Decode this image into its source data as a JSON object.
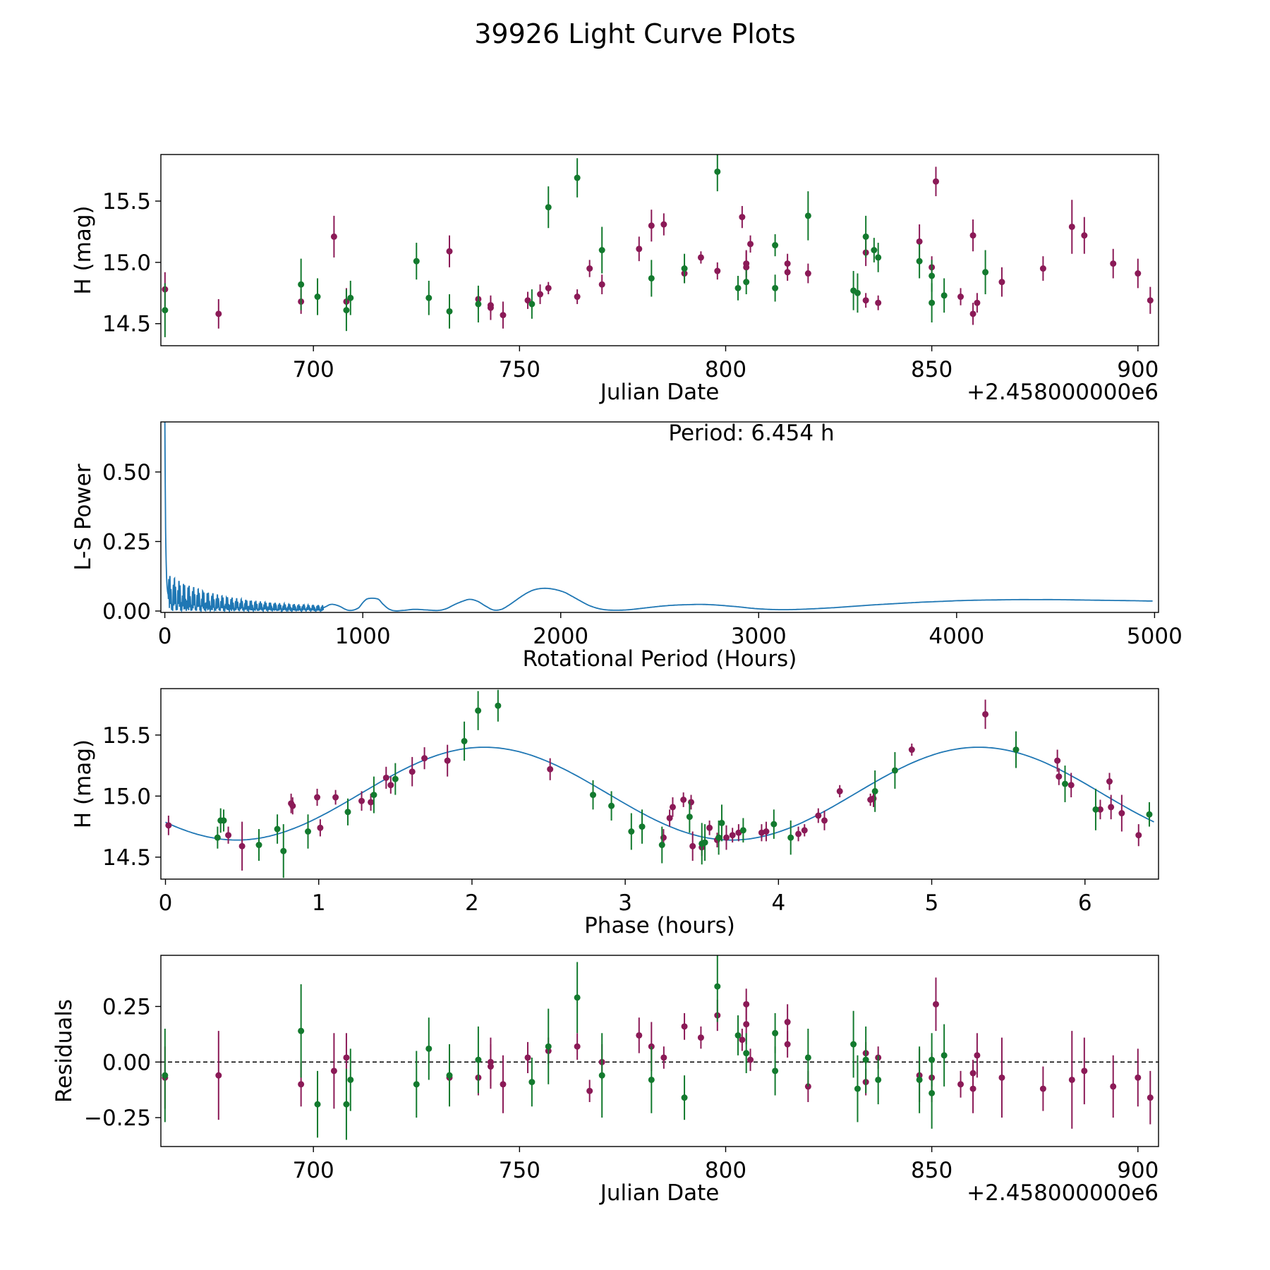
{
  "figure_title": "39926 Light Curve Plots",
  "colors": {
    "purple": "#8b1a57",
    "green": "#137a2e",
    "curve": "#1f77b4",
    "axis": "#000000",
    "zero_line": "#000000"
  },
  "chart_data": [
    {
      "type": "scatter",
      "name": "light-curve",
      "title": "",
      "xlabel": "Julian Date",
      "ylabel": "H (mag)",
      "offset_label": "+2.458000000e6",
      "xlim": [
        663,
        905
      ],
      "ylim": [
        14.32,
        15.88
      ],
      "xticks": [
        700,
        750,
        800,
        850,
        900
      ],
      "yticks": [
        14.5,
        15.0,
        15.5
      ],
      "ytick_labels": [
        "14.5",
        "15.0",
        "15.5"
      ],
      "series": [
        {
          "name": "purple",
          "color": "#8b1a57",
          "x": [
            664,
            677,
            697,
            705,
            708,
            733,
            740,
            743,
            743,
            746,
            752,
            755,
            757,
            764,
            767,
            770,
            779,
            782,
            785,
            790,
            794,
            798,
            804,
            805,
            805,
            806,
            815,
            815,
            820,
            834,
            834,
            837,
            847,
            850,
            851,
            857,
            860,
            860,
            861,
            867,
            877,
            884,
            887,
            894,
            900,
            903
          ],
          "y": [
            14.78,
            14.58,
            14.68,
            15.21,
            14.68,
            15.09,
            14.7,
            14.63,
            14.65,
            14.57,
            14.69,
            14.74,
            14.79,
            14.72,
            14.95,
            14.82,
            15.11,
            15.3,
            15.31,
            14.91,
            15.04,
            14.93,
            15.37,
            14.99,
            14.96,
            15.15,
            14.99,
            14.92,
            14.91,
            15.08,
            14.69,
            14.67,
            15.17,
            14.96,
            15.66,
            14.72,
            15.22,
            14.58,
            14.67,
            14.84,
            14.95,
            15.29,
            15.22,
            14.99,
            14.91,
            14.69
          ],
          "err": [
            0.14,
            0.12,
            0.1,
            0.17,
            0.11,
            0.13,
            0.08,
            0.1,
            0.06,
            0.11,
            0.07,
            0.08,
            0.05,
            0.06,
            0.07,
            0.08,
            0.1,
            0.13,
            0.09,
            0.08,
            0.05,
            0.07,
            0.09,
            0.11,
            0.13,
            0.07,
            0.08,
            0.07,
            0.08,
            0.11,
            0.06,
            0.06,
            0.14,
            0.09,
            0.12,
            0.07,
            0.13,
            0.09,
            0.08,
            0.12,
            0.1,
            0.22,
            0.15,
            0.12,
            0.12,
            0.11
          ]
        },
        {
          "name": "green",
          "color": "#137a2e",
          "x": [
            664,
            697,
            701,
            708,
            709,
            725,
            728,
            733,
            740,
            753,
            757,
            764,
            770,
            782,
            790,
            798,
            803,
            805,
            812,
            812,
            820,
            831,
            832,
            834,
            836,
            837,
            847,
            850,
            850,
            853,
            863
          ],
          "y": [
            14.61,
            14.82,
            14.72,
            14.61,
            14.71,
            15.01,
            14.71,
            14.6,
            14.66,
            14.66,
            15.45,
            15.69,
            15.1,
            14.87,
            14.95,
            15.74,
            14.79,
            14.84,
            15.14,
            14.79,
            15.38,
            14.77,
            14.75,
            15.21,
            15.1,
            15.04,
            15.01,
            14.89,
            14.67,
            14.73,
            14.92
          ],
          "err": [
            0.22,
            0.21,
            0.15,
            0.17,
            0.14,
            0.15,
            0.14,
            0.14,
            0.15,
            0.12,
            0.17,
            0.16,
            0.19,
            0.15,
            0.12,
            0.16,
            0.1,
            0.1,
            0.09,
            0.11,
            0.2,
            0.16,
            0.16,
            0.17,
            0.1,
            0.12,
            0.14,
            0.13,
            0.16,
            0.14,
            0.18
          ]
        }
      ]
    },
    {
      "type": "line",
      "name": "periodogram",
      "title": "",
      "xlabel": "Rotational Period (Hours)",
      "ylabel": "L-S Power",
      "annotation": "Period: 6.454 h",
      "xlim": [
        -20,
        5020
      ],
      "ylim": [
        -0.005,
        0.68
      ],
      "xticks": [
        0,
        1000,
        2000,
        3000,
        4000,
        5000
      ],
      "yticks": [
        0.0,
        0.25,
        0.5
      ],
      "ytick_labels": [
        "0.00",
        "0.25",
        "0.50"
      ],
      "series": [
        {
          "name": "L-S power",
          "color": "#1f77b4",
          "x": [
            800,
            840,
            880,
            920,
            950,
            980,
            1000,
            1020,
            1050,
            1080,
            1100,
            1130,
            1160,
            1200,
            1260,
            1320,
            1380,
            1420,
            1460,
            1500,
            1540,
            1580,
            1620,
            1660,
            1700,
            1740,
            1780,
            1820,
            1860,
            1900,
            1940,
            1980,
            2020,
            2060,
            2100,
            2140,
            2180,
            2220,
            2260,
            2300,
            2350,
            2400,
            2450,
            2500,
            2550,
            2600,
            2650,
            2700,
            2750,
            2800,
            2850,
            2900,
            2950,
            3000,
            3050,
            3100,
            3150,
            3200,
            3300,
            3400,
            3500,
            3600,
            3700,
            3800,
            3900,
            4000,
            4100,
            4200,
            4300,
            4400,
            4500,
            4600,
            4700,
            4800,
            4900,
            4990
          ],
          "y": [
            0.012,
            0.024,
            0.018,
            0.004,
            0.003,
            0.012,
            0.03,
            0.043,
            0.046,
            0.042,
            0.026,
            0.008,
            0.001,
            0.002,
            0.006,
            0.004,
            0.002,
            0.008,
            0.022,
            0.034,
            0.042,
            0.035,
            0.018,
            0.004,
            0.006,
            0.022,
            0.042,
            0.061,
            0.075,
            0.081,
            0.081,
            0.076,
            0.067,
            0.052,
            0.036,
            0.021,
            0.011,
            0.005,
            0.003,
            0.003,
            0.005,
            0.009,
            0.013,
            0.017,
            0.02,
            0.022,
            0.023,
            0.024,
            0.023,
            0.021,
            0.018,
            0.015,
            0.011,
            0.008,
            0.006,
            0.005,
            0.005,
            0.006,
            0.009,
            0.013,
            0.018,
            0.023,
            0.027,
            0.031,
            0.034,
            0.037,
            0.039,
            0.04,
            0.041,
            0.041,
            0.041,
            0.04,
            0.039,
            0.038,
            0.037,
            0.036
          ]
        }
      ]
    },
    {
      "type": "scatter",
      "name": "phase-fold",
      "title": "",
      "xlabel": "Phase (hours)",
      "ylabel": "H (mag)",
      "xlim": [
        -0.03,
        6.48
      ],
      "ylim": [
        14.32,
        15.88
      ],
      "xticks": [
        0,
        1,
        2,
        3,
        4,
        5,
        6
      ],
      "yticks": [
        14.5,
        15.0,
        15.5
      ],
      "ytick_labels": [
        "14.5",
        "15.0",
        "15.5"
      ],
      "fit": {
        "mean": 15.02,
        "amplitude": 0.38,
        "period_hours": 3.227,
        "peak_phase": 2.08
      },
      "series": [
        {
          "name": "purple",
          "color": "#8b1a57",
          "x": [
            0.02,
            0.5,
            0.41,
            0.82,
            0.83,
            0.99,
            1.01,
            1.11,
            1.28,
            1.34,
            1.44,
            1.47,
            1.61,
            1.69,
            1.84,
            2.51,
            3.25,
            3.29,
            3.31,
            3.38,
            3.43,
            3.44,
            3.5,
            3.55,
            3.6,
            3.66,
            3.7,
            3.74,
            3.89,
            3.92,
            4.13,
            4.17,
            4.26,
            4.3,
            4.4,
            4.6,
            4.62,
            4.87,
            5.35,
            5.82,
            5.83,
            5.91,
            6.1,
            6.16,
            6.17,
            6.24,
            6.35
          ],
          "y": [
            14.76,
            14.59,
            14.68,
            14.94,
            14.92,
            14.99,
            14.74,
            14.99,
            14.96,
            14.95,
            15.15,
            15.09,
            15.2,
            15.31,
            15.29,
            15.22,
            14.66,
            14.82,
            14.91,
            14.97,
            14.95,
            14.59,
            14.58,
            14.74,
            14.64,
            14.66,
            14.68,
            14.7,
            14.7,
            14.71,
            14.69,
            14.72,
            14.84,
            14.8,
            15.04,
            14.97,
            14.98,
            15.38,
            15.67,
            15.29,
            15.16,
            15.09,
            14.89,
            15.12,
            14.91,
            14.86,
            14.68
          ],
          "err": [
            0.08,
            0.2,
            0.07,
            0.08,
            0.07,
            0.07,
            0.07,
            0.06,
            0.08,
            0.07,
            0.09,
            0.07,
            0.12,
            0.09,
            0.13,
            0.09,
            0.07,
            0.07,
            0.08,
            0.06,
            0.06,
            0.12,
            0.07,
            0.06,
            0.06,
            0.1,
            0.06,
            0.07,
            0.07,
            0.08,
            0.06,
            0.05,
            0.06,
            0.08,
            0.05,
            0.05,
            0.07,
            0.05,
            0.12,
            0.09,
            0.07,
            0.1,
            0.08,
            0.07,
            0.1,
            0.15,
            0.09
          ]
        },
        {
          "name": "green",
          "color": "#137a2e",
          "x": [
            0.34,
            0.36,
            0.38,
            0.61,
            0.73,
            0.77,
            0.93,
            1.19,
            1.36,
            1.5,
            1.95,
            2.04,
            2.17,
            2.79,
            2.91,
            3.04,
            3.11,
            3.24,
            3.42,
            3.5,
            3.52,
            3.61,
            3.63,
            3.77,
            3.97,
            4.08,
            4.63,
            4.76,
            5.55,
            5.87,
            6.07,
            6.42
          ],
          "y": [
            14.66,
            14.8,
            14.8,
            14.6,
            14.73,
            14.55,
            14.71,
            14.87,
            15.01,
            15.14,
            15.45,
            15.7,
            15.74,
            15.01,
            14.92,
            14.71,
            14.75,
            14.6,
            14.83,
            14.61,
            14.62,
            14.66,
            14.78,
            14.72,
            14.77,
            14.66,
            15.04,
            15.21,
            15.38,
            15.1,
            14.89,
            14.85
          ],
          "err": [
            0.09,
            0.1,
            0.09,
            0.13,
            0.12,
            0.22,
            0.14,
            0.11,
            0.15,
            0.13,
            0.16,
            0.16,
            0.13,
            0.12,
            0.12,
            0.15,
            0.14,
            0.15,
            0.13,
            0.17,
            0.15,
            0.14,
            0.15,
            0.1,
            0.12,
            0.14,
            0.17,
            0.15,
            0.15,
            0.15,
            0.17,
            0.1
          ]
        }
      ]
    },
    {
      "type": "scatter",
      "name": "residuals",
      "title": "",
      "xlabel": "Julian Date",
      "ylabel": "Residuals",
      "offset_label": "+2.458000000e6",
      "xlim": [
        663,
        905
      ],
      "ylim": [
        -0.38,
        0.48
      ],
      "xticks": [
        700,
        750,
        800,
        850,
        900
      ],
      "yticks": [
        -0.25,
        0.0,
        0.25
      ],
      "ytick_labels": [
        "−0.25",
        "0.00",
        "0.25"
      ],
      "reference_line": 0,
      "series": [
        {
          "name": "purple",
          "color": "#8b1a57",
          "x": [
            664,
            677,
            697,
            705,
            708,
            733,
            740,
            743,
            743,
            746,
            752,
            757,
            764,
            767,
            770,
            779,
            782,
            785,
            790,
            794,
            798,
            804,
            805,
            805,
            806,
            815,
            815,
            820,
            834,
            834,
            837,
            847,
            850,
            851,
            857,
            860,
            860,
            861,
            867,
            877,
            884,
            887,
            894,
            900,
            903
          ],
          "y": [
            -0.07,
            -0.06,
            -0.1,
            -0.04,
            0.02,
            -0.07,
            -0.07,
            -0.02,
            0.0,
            -0.1,
            0.02,
            0.05,
            0.07,
            -0.13,
            0.0,
            0.12,
            0.07,
            0.02,
            0.16,
            0.11,
            0.21,
            0.1,
            0.17,
            0.26,
            0.01,
            0.18,
            0.08,
            -0.11,
            0.04,
            -0.09,
            0.02,
            -0.06,
            -0.07,
            0.26,
            -0.1,
            -0.05,
            -0.12,
            0.03,
            -0.07,
            -0.12,
            -0.08,
            -0.04,
            -0.11,
            -0.07,
            -0.16
          ],
          "err": [
            0.14,
            0.2,
            0.1,
            0.17,
            0.11,
            0.07,
            0.08,
            0.1,
            0.11,
            0.13,
            0.07,
            0.06,
            0.06,
            0.05,
            0.08,
            0.08,
            0.11,
            0.05,
            0.06,
            0.05,
            0.07,
            0.05,
            0.09,
            0.07,
            0.05,
            0.08,
            0.06,
            0.07,
            0.05,
            0.06,
            0.05,
            0.12,
            0.11,
            0.12,
            0.06,
            0.06,
            0.11,
            0.1,
            0.18,
            0.1,
            0.22,
            0.15,
            0.14,
            0.13,
            0.12
          ]
        },
        {
          "name": "green",
          "color": "#137a2e",
          "x": [
            664,
            697,
            701,
            708,
            709,
            725,
            728,
            733,
            740,
            753,
            757,
            764,
            770,
            782,
            790,
            798,
            803,
            805,
            812,
            812,
            820,
            831,
            832,
            834,
            837,
            847,
            850,
            850,
            853
          ],
          "y": [
            -0.06,
            0.14,
            -0.19,
            -0.19,
            -0.08,
            -0.1,
            0.06,
            -0.06,
            0.01,
            -0.09,
            0.07,
            0.29,
            -0.06,
            -0.08,
            -0.16,
            0.34,
            0.12,
            0.04,
            0.13,
            -0.04,
            0.02,
            0.08,
            -0.12,
            0.01,
            -0.08,
            -0.08,
            0.01,
            -0.14,
            0.03
          ],
          "err": [
            0.21,
            0.21,
            0.15,
            0.16,
            0.14,
            0.15,
            0.14,
            0.14,
            0.15,
            0.11,
            0.17,
            0.16,
            0.19,
            0.15,
            0.1,
            0.16,
            0.09,
            0.09,
            0.09,
            0.11,
            0.13,
            0.15,
            0.15,
            0.15,
            0.11,
            0.15,
            0.12,
            0.16,
            0.14
          ]
        }
      ]
    }
  ]
}
